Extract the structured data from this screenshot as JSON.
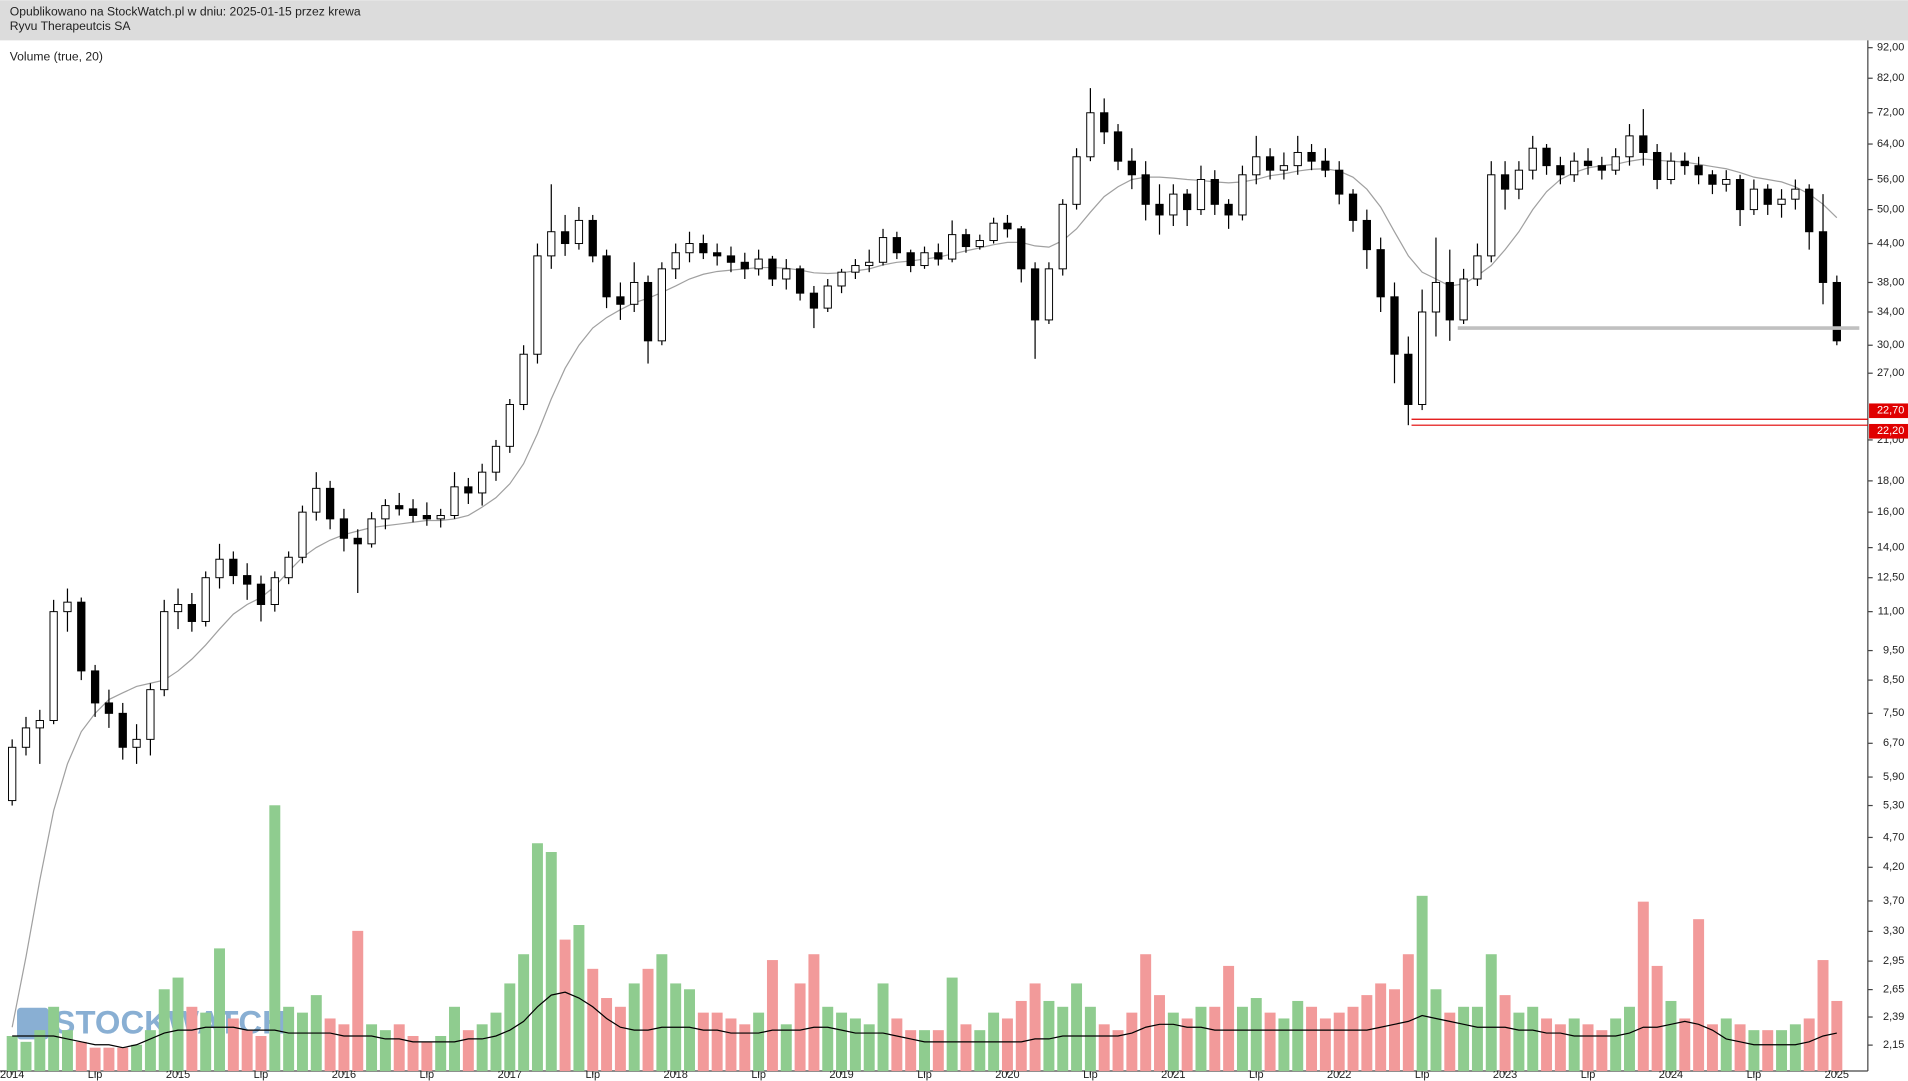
{
  "header": {
    "published": "Opublikowano na StockWatch.pl w dniu: 2025-01-15 przez krewa",
    "watermark": "STOCKWATCH"
  },
  "chart_data": [
    {
      "type": "candlestick",
      "title": "Ryvu Therapeutcis SA",
      "log_scale": true,
      "categories": [
        "2014",
        null,
        null,
        null,
        null,
        null,
        "Lip",
        null,
        null,
        null,
        null,
        null,
        "2015",
        null,
        null,
        null,
        null,
        null,
        "Lip",
        null,
        null,
        null,
        null,
        null,
        "2016",
        null,
        null,
        null,
        null,
        null,
        "Lip",
        null,
        null,
        null,
        null,
        null,
        "2017",
        null,
        null,
        null,
        null,
        null,
        "Lip",
        null,
        null,
        null,
        null,
        null,
        "2018",
        null,
        null,
        null,
        null,
        null,
        "Lip",
        null,
        null,
        null,
        null,
        null,
        "2019",
        null,
        null,
        null,
        null,
        null,
        "Lip",
        null,
        null,
        null,
        null,
        null,
        "2020",
        null,
        null,
        null,
        null,
        null,
        "Lip",
        null,
        null,
        null,
        null,
        null,
        "2021",
        null,
        null,
        null,
        null,
        null,
        "Lip",
        null,
        null,
        null,
        null,
        null,
        "2022",
        null,
        null,
        null,
        null,
        null,
        "Lip",
        null,
        null,
        null,
        null,
        null,
        "2023",
        null,
        null,
        null,
        null,
        null,
        "Lip",
        null,
        null,
        null,
        null,
        null,
        "2024",
        null,
        null,
        null,
        null,
        null,
        "Lip",
        null,
        null,
        null,
        null,
        null,
        "2025"
      ],
      "open": [
        5.4,
        6.6,
        7.1,
        7.3,
        11.0,
        11.4,
        8.8,
        7.8,
        7.5,
        6.6,
        6.8,
        8.2,
        11.0,
        11.3,
        10.6,
        12.5,
        13.4,
        12.6,
        12.2,
        11.3,
        12.5,
        13.5,
        16.0,
        17.5,
        15.6,
        14.5,
        14.2,
        15.6,
        16.4,
        16.2,
        15.8,
        15.6,
        15.8,
        17.6,
        17.2,
        18.6,
        20.5,
        24.0,
        29.0,
        42.0,
        46.0,
        44.0,
        48.0,
        42.0,
        36.0,
        35.0,
        38.0,
        30.5,
        40.0,
        42.5,
        44.0,
        42.5,
        42.0,
        41.0,
        40.0,
        41.5,
        38.5,
        40.0,
        36.5,
        34.5,
        37.5,
        39.5,
        40.5,
        41.0,
        45.0,
        42.5,
        40.5,
        42.5,
        41.5,
        45.5,
        43.5,
        44.5,
        47.5,
        46.5,
        40.0,
        33.0,
        40.0,
        51.0,
        61.0,
        72.0,
        67.0,
        60.0,
        57.0,
        51.0,
        49.0,
        53.0,
        50.0,
        56.0,
        51.0,
        49.0,
        57.0,
        61.0,
        58.0,
        59.0,
        62.0,
        60.0,
        58.0,
        53.0,
        48.0,
        43.0,
        36.0,
        29.0,
        24.0,
        34.0,
        38.0,
        33.0,
        38.5,
        42.0,
        57.0,
        54.0,
        58.0,
        63.0,
        59.0,
        57.0,
        60.0,
        59.0,
        58.0,
        61.0,
        66.0,
        62.0,
        56.0,
        60.0,
        59.0,
        57.0,
        55.0,
        56.0,
        50.0,
        54.0,
        51.0,
        52.0,
        54.0,
        46.0,
        38.0
      ],
      "high": [
        6.8,
        7.4,
        7.6,
        11.5,
        12.0,
        11.6,
        9.0,
        8.2,
        7.8,
        7.2,
        8.4,
        11.5,
        12.0,
        11.8,
        12.8,
        14.2,
        13.8,
        13.2,
        12.6,
        12.8,
        13.8,
        16.4,
        18.6,
        18.0,
        16.2,
        15.0,
        16.0,
        16.8,
        17.2,
        16.8,
        16.6,
        16.2,
        18.6,
        18.2,
        19.2,
        21.0,
        24.5,
        30.0,
        44.0,
        55.0,
        49.0,
        50.5,
        49.0,
        43.0,
        38.0,
        41.0,
        39.0,
        41.0,
        44.0,
        46.0,
        45.5,
        44.0,
        43.5,
        42.5,
        43.0,
        42.0,
        41.5,
        40.5,
        37.5,
        38.5,
        40.0,
        41.5,
        43.0,
        46.5,
        46.0,
        43.0,
        43.5,
        44.0,
        48.0,
        46.5,
        45.5,
        48.5,
        49.0,
        47.0,
        41.0,
        41.0,
        52.0,
        63.0,
        79.0,
        76.0,
        69.0,
        63.0,
        60.0,
        55.0,
        55.0,
        54.0,
        59.0,
        58.0,
        52.0,
        59.0,
        66.0,
        63.0,
        62.0,
        66.0,
        64.0,
        63.0,
        60.0,
        54.0,
        50.0,
        45.0,
        38.0,
        31.0,
        37.0,
        45.0,
        43.0,
        40.0,
        44.0,
        60.0,
        60.0,
        60.0,
        66.0,
        64.0,
        61.0,
        62.0,
        63.0,
        61.0,
        63.0,
        69.0,
        73.0,
        64.0,
        62.0,
        62.0,
        61.0,
        58.0,
        58.0,
        57.0,
        56.0,
        55.0,
        54.0,
        56.0,
        55.0,
        53.0,
        39.0
      ],
      "low": [
        5.3,
        6.4,
        6.2,
        7.2,
        10.2,
        8.5,
        7.4,
        7.1,
        6.3,
        6.2,
        6.4,
        8.0,
        10.3,
        10.2,
        10.4,
        12.0,
        12.2,
        11.5,
        10.6,
        11.0,
        12.2,
        13.2,
        15.5,
        15.0,
        13.8,
        11.8,
        14.0,
        15.0,
        15.8,
        15.4,
        15.2,
        15.1,
        15.6,
        16.5,
        16.4,
        18.0,
        20.0,
        23.5,
        28.0,
        40.0,
        42.0,
        43.0,
        41.0,
        34.5,
        33.0,
        34.0,
        28.0,
        30.0,
        38.5,
        41.0,
        41.5,
        40.5,
        39.5,
        38.5,
        39.0,
        37.5,
        37.0,
        35.5,
        32.0,
        34.0,
        36.5,
        38.5,
        39.5,
        40.5,
        41.5,
        39.5,
        40.0,
        40.5,
        41.0,
        42.5,
        43.0,
        44.0,
        45.0,
        38.0,
        28.5,
        32.5,
        39.0,
        50.0,
        60.0,
        64.0,
        58.0,
        54.0,
        48.0,
        45.5,
        47.0,
        47.0,
        49.0,
        49.0,
        46.5,
        48.0,
        55.0,
        56.0,
        56.0,
        57.0,
        58.0,
        56.5,
        51.0,
        46.0,
        40.0,
        34.0,
        26.0,
        22.2,
        23.5,
        31.0,
        30.5,
        32.5,
        37.5,
        41.0,
        50.0,
        52.0,
        56.0,
        57.0,
        55.0,
        55.5,
        57.0,
        56.0,
        57.0,
        59.0,
        59.0,
        54.0,
        55.0,
        57.0,
        55.0,
        53.0,
        53.5,
        47.0,
        49.0,
        49.0,
        48.5,
        50.0,
        43.0,
        35.0,
        30.0
      ],
      "close": [
        6.6,
        7.1,
        7.3,
        11.0,
        11.4,
        8.8,
        7.8,
        7.5,
        6.6,
        6.8,
        8.2,
        11.0,
        11.3,
        10.6,
        12.5,
        13.4,
        12.6,
        12.2,
        11.3,
        12.5,
        13.5,
        16.0,
        17.5,
        15.6,
        14.5,
        14.2,
        15.6,
        16.4,
        16.2,
        15.8,
        15.6,
        15.8,
        17.6,
        17.2,
        18.6,
        20.5,
        24.0,
        29.0,
        42.0,
        46.0,
        44.0,
        48.0,
        42.0,
        36.0,
        35.0,
        38.0,
        30.5,
        40.0,
        42.5,
        44.0,
        42.5,
        42.0,
        41.0,
        40.0,
        41.5,
        38.5,
        40.0,
        36.5,
        34.5,
        37.5,
        39.5,
        40.5,
        41.0,
        45.0,
        42.5,
        40.5,
        42.5,
        41.5,
        45.5,
        43.5,
        44.5,
        47.5,
        46.5,
        40.0,
        33.0,
        40.0,
        51.0,
        61.0,
        72.0,
        67.0,
        60.0,
        57.0,
        51.0,
        49.0,
        53.0,
        50.0,
        56.0,
        51.0,
        49.0,
        57.0,
        61.0,
        58.0,
        59.0,
        62.0,
        60.0,
        58.0,
        53.0,
        48.0,
        43.0,
        36.0,
        29.0,
        24.0,
        34.0,
        38.0,
        33.0,
        38.5,
        42.0,
        57.0,
        54.0,
        58.0,
        63.0,
        59.0,
        57.0,
        60.0,
        59.0,
        58.0,
        61.0,
        66.0,
        62.0,
        56.0,
        60.0,
        59.0,
        57.0,
        55.0,
        56.0,
        50.0,
        54.0,
        51.0,
        52.0,
        54.0,
        46.0,
        38.0,
        30.5
      ],
      "up_color": "#ffffff",
      "down_color": "#000000",
      "wick_color": "#000000",
      "ma": {
        "color": "#a0a0a0",
        "values": [
          2.3,
          3.0,
          4.0,
          5.2,
          6.2,
          7.0,
          7.5,
          7.9,
          8.1,
          8.3,
          8.4,
          8.5,
          8.8,
          9.2,
          9.7,
          10.3,
          10.9,
          11.3,
          11.6,
          12.1,
          12.8,
          13.5,
          14.0,
          14.4,
          14.7,
          14.9,
          15.1,
          15.2,
          15.3,
          15.4,
          15.5,
          15.5,
          15.6,
          15.8,
          16.3,
          16.9,
          17.8,
          19.2,
          21.5,
          24.5,
          27.5,
          30.0,
          32.0,
          33.3,
          34.3,
          35.2,
          35.8,
          36.6,
          37.5,
          38.5,
          39.2,
          39.6,
          39.8,
          40.0,
          40.2,
          40.2,
          40.1,
          39.8,
          39.4,
          39.3,
          39.4,
          39.7,
          40.0,
          40.6,
          41.0,
          41.2,
          41.5,
          41.8,
          42.3,
          42.8,
          43.3,
          43.8,
          44.2,
          44.2,
          43.6,
          43.4,
          44.5,
          46.5,
          49.5,
          52.5,
          54.5,
          56.0,
          56.5,
          56.5,
          56.3,
          56.0,
          55.8,
          55.5,
          55.3,
          55.5,
          56.0,
          56.8,
          57.2,
          57.8,
          58.2,
          58.3,
          57.8,
          56.5,
          54.0,
          50.5,
          46.0,
          42.0,
          39.5,
          38.5,
          37.5,
          37.8,
          39.0,
          40.5,
          43.0,
          46.0,
          50.0,
          53.5,
          56.0,
          57.5,
          58.5,
          59.0,
          59.3,
          60.0,
          60.5,
          60.2,
          60.0,
          59.8,
          59.3,
          58.8,
          58.3,
          57.5,
          56.5,
          56.0,
          55.5,
          54.5,
          53.0,
          51.0,
          48.5
        ]
      },
      "levels": [
        {
          "value": 22.7,
          "label": "22,70",
          "color": "#e00000"
        },
        {
          "value": 22.2,
          "label": "22,20",
          "color": "#e00000"
        },
        {
          "value": 32,
          "color": "#c0c0c0"
        }
      ],
      "ylim": [
        1.95,
        110
      ],
      "yticks": [
        {
          "value": 92,
          "label": "92,00"
        },
        {
          "value": 82,
          "label": "82,00"
        },
        {
          "value": 72,
          "label": "72,00"
        },
        {
          "value": 64,
          "label": "64,00"
        },
        {
          "value": 56,
          "label": "56,00"
        },
        {
          "value": 50,
          "label": "50,00"
        },
        {
          "value": 44,
          "label": "44,00"
        },
        {
          "value": 38,
          "label": "38,00"
        },
        {
          "value": 34,
          "label": "34,00"
        },
        {
          "value": 30,
          "label": "30,00"
        },
        {
          "value": 27,
          "label": "27,00"
        },
        {
          "value": 21,
          "label": "21,00"
        },
        {
          "value": 18,
          "label": "18,00"
        },
        {
          "value": 16,
          "label": "16,00"
        },
        {
          "value": 14,
          "label": "14,00"
        },
        {
          "value": 12.5,
          "label": "12,50"
        },
        {
          "value": 11,
          "label": "11,00"
        },
        {
          "value": 9.5,
          "label": "9,50"
        },
        {
          "value": 8.5,
          "label": "8,50"
        },
        {
          "value": 7.5,
          "label": "7,50"
        },
        {
          "value": 6.7,
          "label": "6,70"
        },
        {
          "value": 5.9,
          "label": "5,90"
        },
        {
          "value": 5.3,
          "label": "5,30"
        },
        {
          "value": 4.7,
          "label": "4,70"
        },
        {
          "value": 4.2,
          "label": "4,20"
        },
        {
          "value": 3.7,
          "label": "3,70"
        },
        {
          "value": 3.3,
          "label": "3,30"
        },
        {
          "value": 2.95,
          "label": "2,95"
        },
        {
          "value": 2.65,
          "label": "2,65"
        },
        {
          "value": 2.39,
          "label": "2,39"
        },
        {
          "value": 2.15,
          "label": "2,15"
        }
      ]
    },
    {
      "type": "volume",
      "title": "Volume (true, 20)",
      "up_color": "#8fcc8f",
      "down_color": "#f29a9a",
      "values": [
        12,
        10,
        14,
        22,
        14,
        10,
        8,
        8,
        8,
        9,
        14,
        28,
        32,
        22,
        20,
        42,
        18,
        14,
        12,
        91,
        22,
        20,
        26,
        18,
        16,
        48,
        16,
        14,
        16,
        12,
        10,
        12,
        22,
        14,
        16,
        20,
        30,
        40,
        78,
        75,
        45,
        50,
        35,
        25,
        22,
        30,
        35,
        40,
        30,
        28,
        20,
        20,
        18,
        16,
        20,
        38,
        16,
        30,
        40,
        22,
        20,
        18,
        16,
        30,
        18,
        14,
        14,
        14,
        32,
        16,
        14,
        20,
        18,
        24,
        30,
        24,
        22,
        30,
        22,
        16,
        14,
        20,
        40,
        26,
        20,
        18,
        22,
        22,
        36,
        22,
        25,
        20,
        18,
        24,
        22,
        18,
        20,
        22,
        26,
        30,
        28,
        40,
        60,
        28,
        20,
        22,
        22,
        40,
        26,
        20,
        22,
        18,
        16,
        18,
        16,
        14,
        18,
        22,
        58,
        36,
        24,
        18,
        52,
        16,
        18,
        16,
        14,
        14,
        14,
        16,
        18,
        38,
        24
      ],
      "average": {
        "color": "#000000",
        "values": [
          12,
          12,
          12,
          12,
          11,
          10,
          9,
          9,
          8,
          9,
          11,
          13,
          14,
          14,
          15,
          15,
          15,
          14,
          14,
          14,
          13,
          13,
          13,
          13,
          12,
          12,
          12,
          11,
          11,
          10,
          10,
          10,
          10,
          11,
          11,
          12,
          14,
          17,
          22,
          26,
          27,
          25,
          22,
          18,
          15,
          14,
          14,
          15,
          15,
          15,
          14,
          14,
          13,
          13,
          13,
          14,
          14,
          14,
          15,
          15,
          14,
          13,
          13,
          13,
          12,
          11,
          10,
          10,
          10,
          10,
          10,
          10,
          10,
          10,
          11,
          11,
          12,
          12,
          12,
          12,
          12,
          13,
          15,
          16,
          16,
          15,
          15,
          14,
          14,
          14,
          14,
          14,
          14,
          14,
          14,
          14,
          14,
          14,
          14,
          15,
          16,
          17,
          19,
          18,
          17,
          16,
          15,
          15,
          15,
          14,
          14,
          13,
          13,
          12,
          12,
          12,
          12,
          13,
          15,
          15,
          16,
          17,
          16,
          14,
          11,
          10,
          9,
          9,
          9,
          9,
          10,
          12,
          13
        ]
      },
      "ylim": [
        0,
        100
      ]
    }
  ]
}
